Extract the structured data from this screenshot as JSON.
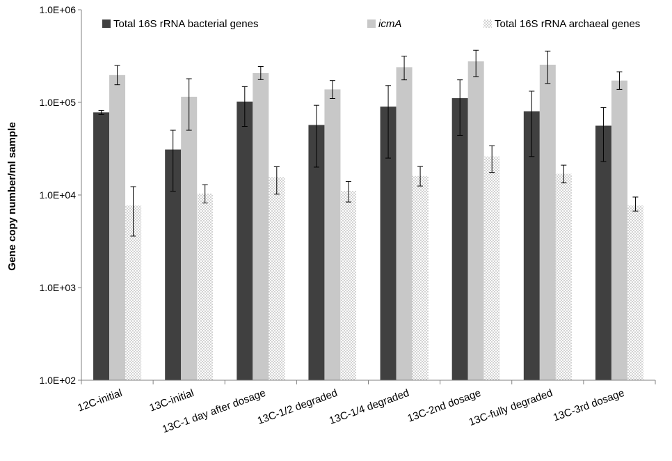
{
  "chart_data": {
    "type": "bar",
    "title": "",
    "xlabel": "",
    "ylabel": "Gene copy number/ml sample",
    "yscale": "log",
    "ylim": [
      100,
      1000000
    ],
    "yticks": [
      100,
      1000,
      10000,
      100000,
      1000000
    ],
    "ytick_labels": [
      "1.0E+02",
      "1.0E+03",
      "1.0E+04",
      "1.0E+05",
      "1.0E+06"
    ],
    "grid": false,
    "legend_position": "top",
    "categories": [
      "12C-initial",
      "13C-initial",
      "13C-1 day after dosage",
      "13C-1/2 degraded",
      "13C-1/4 degraded",
      "13C-2nd dosage",
      "13C-fully degraded",
      "13C-3rd dosage"
    ],
    "series": [
      {
        "name": "Total 16S rRNA bacterial genes",
        "color": "#404040",
        "pattern": "solid",
        "values": [
          78000,
          31000,
          102000,
          57000,
          90000,
          111000,
          80000,
          56000
        ],
        "error_low": [
          74000,
          11000,
          55000,
          20000,
          25000,
          44000,
          26000,
          23000
        ],
        "error_high": [
          82000,
          50000,
          148000,
          93000,
          152000,
          175000,
          132000,
          88000
        ]
      },
      {
        "name": "icmA",
        "italic": true,
        "color": "#c8c8c8",
        "pattern": "solid",
        "values": [
          197000,
          115000,
          207000,
          138000,
          240000,
          277000,
          255000,
          172000
        ],
        "error_low": [
          155000,
          50000,
          176000,
          110000,
          175000,
          190000,
          160000,
          138000
        ],
        "error_high": [
          250000,
          180000,
          244000,
          172000,
          315000,
          365000,
          358000,
          214000
        ]
      },
      {
        "name": "Total 16S rRNA archaeal genes",
        "color": "#808080",
        "pattern": "dotted",
        "values": [
          7700,
          10400,
          15500,
          11000,
          16000,
          26000,
          17000,
          7700
        ],
        "error_low": [
          3600,
          8200,
          10200,
          8400,
          12500,
          17500,
          13500,
          6700
        ],
        "error_high": [
          12300,
          12900,
          20200,
          14000,
          20300,
          34000,
          21000,
          9500
        ]
      }
    ]
  }
}
